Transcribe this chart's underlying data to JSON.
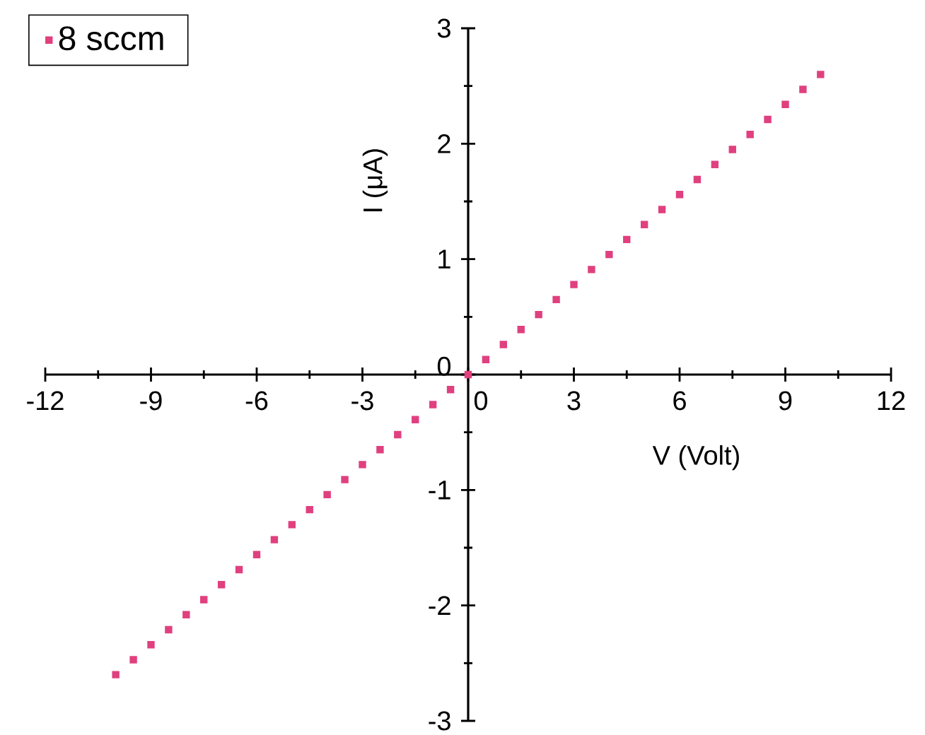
{
  "chart_data": {
    "type": "scatter",
    "xlabel": "V (Volt)",
    "ylabel": "I (μA)",
    "x": [
      -10,
      -9.5,
      -9,
      -8.5,
      -8,
      -7.5,
      -7,
      -6.5,
      -6,
      -5.5,
      -5,
      -4.5,
      -4,
      -3.5,
      -3,
      -2.5,
      -2,
      -1.5,
      -1,
      -0.5,
      0,
      0.5,
      1,
      1.5,
      2,
      2.5,
      3,
      3.5,
      4,
      4.5,
      5,
      5.5,
      6,
      6.5,
      7,
      7.5,
      8,
      8.5,
      9,
      9.5,
      10
    ],
    "series": [
      {
        "name": "8 sccm",
        "color": "#e0407f",
        "values": [
          -2.6,
          -2.47,
          -2.34,
          -2.21,
          -2.08,
          -1.95,
          -1.82,
          -1.69,
          -1.56,
          -1.43,
          -1.3,
          -1.17,
          -1.04,
          -0.91,
          -0.78,
          -0.65,
          -0.52,
          -0.39,
          -0.26,
          -0.13,
          0,
          0.13,
          0.26,
          0.39,
          0.52,
          0.65,
          0.78,
          0.91,
          1.04,
          1.17,
          1.3,
          1.43,
          1.56,
          1.69,
          1.82,
          1.95,
          2.08,
          2.21,
          2.34,
          2.47,
          2.6
        ]
      }
    ],
    "xlim": [
      -12,
      12
    ],
    "xticks": [
      -12,
      -9,
      -6,
      -3,
      0,
      3,
      6,
      9,
      12
    ],
    "ylim": [
      -3,
      3
    ],
    "yticks": [
      -3,
      -2,
      -1,
      0,
      1,
      2,
      3
    ],
    "marker": "square",
    "legend": "top left",
    "grid": false
  }
}
